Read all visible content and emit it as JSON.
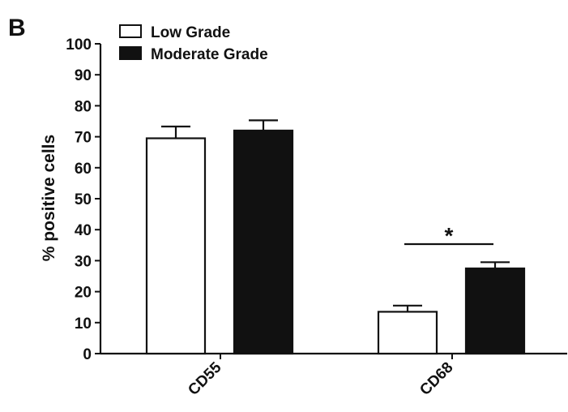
{
  "panel_label": "B",
  "chart_data": {
    "type": "bar",
    "title": "",
    "xlabel": "",
    "ylabel": "% positive cells",
    "ylim": [
      0,
      100
    ],
    "yticks": [
      0,
      10,
      20,
      30,
      40,
      50,
      60,
      70,
      80,
      90,
      100
    ],
    "categories": [
      "CD55",
      "CD68"
    ],
    "series": [
      {
        "name": "Low Grade",
        "values": [
          69.5,
          13.5
        ],
        "errors": [
          3.8,
          2.0
        ],
        "fill": "#ffffff",
        "stroke": "#111111"
      },
      {
        "name": "Moderate Grade",
        "values": [
          72,
          27.5
        ],
        "errors": [
          3.3,
          2.0
        ],
        "fill": "#111111",
        "stroke": "#111111"
      }
    ],
    "legend": {
      "position": "top-left"
    },
    "grid": false,
    "annotations": [
      {
        "text": "*",
        "category": "CD68",
        "between": [
          "Low Grade",
          "Moderate Grade"
        ]
      }
    ]
  }
}
